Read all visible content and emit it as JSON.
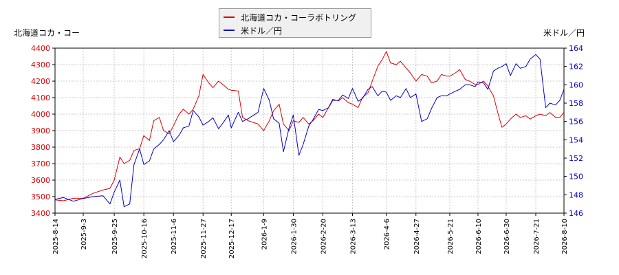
{
  "chart_data": {
    "type": "line",
    "legend_position": "top-center",
    "grid": true,
    "left_axis_label": "北海道コカ・コー",
    "right_axis_label": "米ドル／円",
    "left_ylim": [
      3400,
      4400
    ],
    "right_ylim": [
      146,
      164
    ],
    "left_yticks": [
      "3400",
      "3500",
      "3600",
      "3700",
      "3800",
      "3900",
      "4000",
      "4100",
      "4200",
      "4300",
      "4400"
    ],
    "right_yticks": [
      "146",
      "148",
      "150",
      "152",
      "154",
      "156",
      "158",
      "160",
      "162",
      "164"
    ],
    "xticks": [
      "2025-8-14",
      "2025-9-3",
      "2025-9-25",
      "2025-10-16",
      "2025-11-6",
      "2025-11-27",
      "2025-12-17",
      "2026-1-9",
      "2026-1-30",
      "2026-2-20",
      "2026-3-13",
      "2026-4-6",
      "2026-4-27",
      "2026-5-21",
      "2026-6-10",
      "2026-6-30",
      "2026-7-21",
      "2026-8-10"
    ],
    "series": [
      {
        "name": "北海道コカ・コーラボトリング",
        "axis": "left",
        "color": "#dd0000",
        "x": [
          "2025-8-14",
          "2025-8-20",
          "2025-8-27",
          "2025-9-3",
          "2025-9-10",
          "2025-9-17",
          "2025-9-22",
          "2025-9-25",
          "2025-9-29",
          "2025-10-2",
          "2025-10-6",
          "2025-10-9",
          "2025-10-13",
          "2025-10-16",
          "2025-10-20",
          "2025-10-23",
          "2025-10-27",
          "2025-10-30",
          "2025-11-3",
          "2025-11-6",
          "2025-11-10",
          "2025-11-13",
          "2025-11-17",
          "2025-11-20",
          "2025-11-24",
          "2025-11-27",
          "2025-12-1",
          "2025-12-4",
          "2025-12-8",
          "2025-12-11",
          "2025-12-15",
          "2025-12-17",
          "2025-12-22",
          "2025-12-25",
          "2025-12-29",
          "2026-1-5",
          "2026-1-9",
          "2026-1-13",
          "2026-1-16",
          "2026-1-20",
          "2026-1-23",
          "2026-1-27",
          "2026-1-30",
          "2026-2-3",
          "2026-2-6",
          "2026-2-10",
          "2026-2-13",
          "2026-2-17",
          "2026-2-20",
          "2026-2-24",
          "2026-2-27",
          "2026-3-3",
          "2026-3-6",
          "2026-3-10",
          "2026-3-13",
          "2026-3-17",
          "2026-3-20",
          "2026-3-24",
          "2026-3-27",
          "2026-3-31",
          "2026-4-3",
          "2026-4-6",
          "2026-4-9",
          "2026-4-13",
          "2026-4-16",
          "2026-4-20",
          "2026-4-23",
          "2026-4-27",
          "2026-5-1",
          "2026-5-5",
          "2026-5-8",
          "2026-5-12",
          "2026-5-15",
          "2026-5-19",
          "2026-5-21",
          "2026-5-25",
          "2026-5-28",
          "2026-6-1",
          "2026-6-4",
          "2026-6-8",
          "2026-6-10",
          "2026-6-14",
          "2026-6-17",
          "2026-6-21",
          "2026-6-24",
          "2026-6-27",
          "2026-6-30",
          "2026-7-3",
          "2026-7-7",
          "2026-7-10",
          "2026-7-14",
          "2026-7-17",
          "2026-7-21",
          "2026-7-24",
          "2026-7-28",
          "2026-7-31",
          "2026-8-4",
          "2026-8-7",
          "2026-8-10"
        ],
        "y": [
          3480,
          3475,
          3490,
          3490,
          3520,
          3540,
          3550,
          3600,
          3740,
          3700,
          3720,
          3780,
          3790,
          3870,
          3840,
          3960,
          3980,
          3900,
          3880,
          3930,
          4000,
          4030,
          4000,
          4030,
          4110,
          4240,
          4190,
          4160,
          4200,
          4180,
          4150,
          4145,
          4140,
          3980,
          3960,
          3940,
          3900,
          3960,
          4020,
          4060,
          3940,
          3900,
          3960,
          3950,
          3980,
          3940,
          3960,
          4000,
          3980,
          4040,
          4090,
          4080,
          4100,
          4070,
          4060,
          4040,
          4100,
          4130,
          4200,
          4290,
          4330,
          4380,
          4310,
          4300,
          4320,
          4280,
          4250,
          4200,
          4240,
          4230,
          4190,
          4200,
          4240,
          4230,
          4230,
          4250,
          4270,
          4210,
          4200,
          4180,
          4180,
          4200,
          4170,
          4110,
          4010,
          3920,
          3940,
          3970,
          4000,
          3980,
          3990,
          3970,
          3990,
          4000,
          3990,
          4010,
          3980,
          3980,
          4010
        ]
      },
      {
        "name": "米ドル／円",
        "axis": "right",
        "color": "#0000cc",
        "x": [
          "2025-8-14",
          "2025-8-20",
          "2025-8-27",
          "2025-9-3",
          "2025-9-10",
          "2025-9-17",
          "2025-9-22",
          "2025-9-25",
          "2025-9-29",
          "2025-10-2",
          "2025-10-6",
          "2025-10-9",
          "2025-10-13",
          "2025-10-16",
          "2025-10-20",
          "2025-10-23",
          "2025-10-27",
          "2025-10-30",
          "2025-11-3",
          "2025-11-6",
          "2025-11-10",
          "2025-11-13",
          "2025-11-17",
          "2025-11-20",
          "2025-11-24",
          "2025-11-27",
          "2025-12-1",
          "2025-12-4",
          "2025-12-8",
          "2025-12-11",
          "2025-12-15",
          "2025-12-17",
          "2025-12-22",
          "2025-12-25",
          "2025-12-29",
          "2026-1-5",
          "2026-1-9",
          "2026-1-13",
          "2026-1-16",
          "2026-1-20",
          "2026-1-23",
          "2026-1-27",
          "2026-1-30",
          "2026-2-3",
          "2026-2-6",
          "2026-2-10",
          "2026-2-13",
          "2026-2-17",
          "2026-2-20",
          "2026-2-24",
          "2026-2-27",
          "2026-3-3",
          "2026-3-6",
          "2026-3-10",
          "2026-3-13",
          "2026-3-17",
          "2026-3-20",
          "2026-3-24",
          "2026-3-27",
          "2026-3-31",
          "2026-4-3",
          "2026-4-6",
          "2026-4-9",
          "2026-4-13",
          "2026-4-16",
          "2026-4-20",
          "2026-4-23",
          "2026-4-27",
          "2026-5-1",
          "2026-5-5",
          "2026-5-8",
          "2026-5-12",
          "2026-5-15",
          "2026-5-19",
          "2026-5-21",
          "2026-5-25",
          "2026-5-28",
          "2026-6-1",
          "2026-6-4",
          "2026-6-8",
          "2026-6-10",
          "2026-6-14",
          "2026-6-17",
          "2026-6-21",
          "2026-6-24",
          "2026-6-27",
          "2026-6-30",
          "2026-7-3",
          "2026-7-7",
          "2026-7-10",
          "2026-7-14",
          "2026-7-17",
          "2026-7-21",
          "2026-7-24",
          "2026-7-28",
          "2026-7-31",
          "2026-8-4",
          "2026-8-7",
          "2026-8-10"
        ],
        "y": [
          147.5,
          147.7,
          147.3,
          147.6,
          147.8,
          147.9,
          147.0,
          148.3,
          149.6,
          146.7,
          147.0,
          151.3,
          153.0,
          151.3,
          151.7,
          153.0,
          153.5,
          154.0,
          155.0,
          153.8,
          154.5,
          155.3,
          155.5,
          157.2,
          156.5,
          155.6,
          156.0,
          156.4,
          155.2,
          155.8,
          156.7,
          155.3,
          157.0,
          156.0,
          156.3,
          157.0,
          159.6,
          158.3,
          156.3,
          155.8,
          152.7,
          155.3,
          156.7,
          152.3,
          153.5,
          155.5,
          156.2,
          157.3,
          157.2,
          157.5,
          158.3,
          158.3,
          158.9,
          158.5,
          159.6,
          158.2,
          158.5,
          159.5,
          159.8,
          158.8,
          159.3,
          159.2,
          158.3,
          158.8,
          158.6,
          159.6,
          158.6,
          159.0,
          156.0,
          156.3,
          157.4,
          158.6,
          158.8,
          158.8,
          159.0,
          159.3,
          159.5,
          160.0,
          160.0,
          159.8,
          160.3,
          160.2,
          159.5,
          161.5,
          161.8,
          162.0,
          162.3,
          161.0,
          162.3,
          161.8,
          162.0,
          162.8,
          163.3,
          162.8,
          157.5,
          158.0,
          157.8,
          158.3,
          159.5
        ]
      }
    ]
  }
}
